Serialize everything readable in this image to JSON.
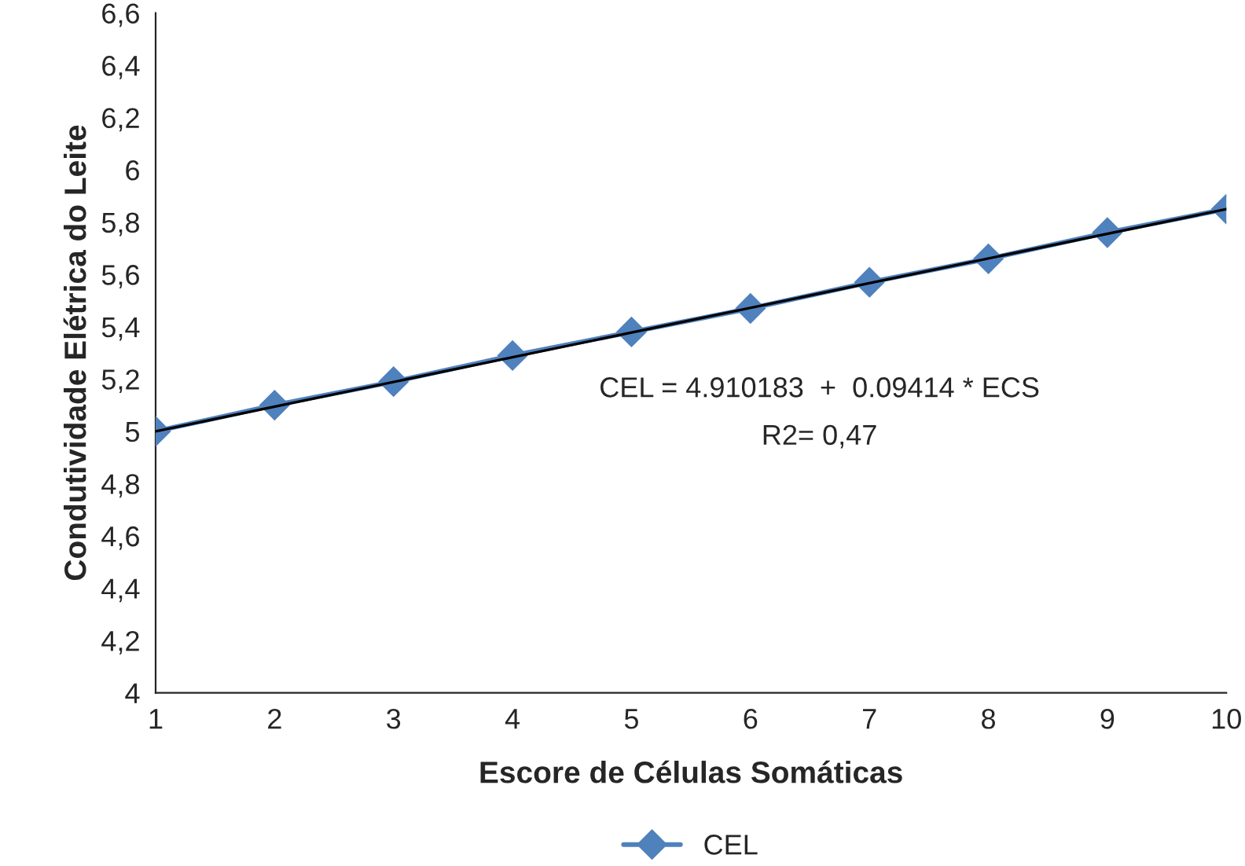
{
  "chart_data": {
    "type": "line",
    "xlabel": "Escore de Células Somáticas",
    "ylabel": "Condutividade Elétrica do Leite",
    "x": [
      1,
      2,
      3,
      4,
      5,
      6,
      7,
      8,
      9,
      10
    ],
    "series": [
      {
        "name": "CEL",
        "color": "#4f81bd",
        "values": [
          5.0,
          5.1,
          5.19,
          5.29,
          5.38,
          5.47,
          5.57,
          5.66,
          5.76,
          5.85
        ],
        "marker": "diamond"
      },
      {
        "type": "line",
        "color": "#000000",
        "x": [
          1,
          10
        ],
        "values": [
          5.0,
          5.85
        ],
        "marker": "none"
      }
    ],
    "xlim": [
      1,
      10
    ],
    "xticks": [
      1,
      2,
      3,
      4,
      5,
      6,
      7,
      8,
      9,
      10
    ],
    "ylim": [
      4,
      6.6
    ],
    "yticks": [
      {
        "value": 4,
        "label": "4"
      },
      {
        "value": 4.2,
        "label": "4,2"
      },
      {
        "value": 4.4,
        "label": "4,4"
      },
      {
        "value": 4.6,
        "label": "4,6"
      },
      {
        "value": 4.8,
        "label": "4,8"
      },
      {
        "value": 5,
        "label": "5"
      },
      {
        "value": 5.2,
        "label": "5,2"
      },
      {
        "value": 5.4,
        "label": "5,4"
      },
      {
        "value": 5.6,
        "label": "5,6"
      },
      {
        "value": 5.8,
        "label": "5,8"
      },
      {
        "value": 6,
        "label": "6"
      },
      {
        "value": 6.2,
        "label": "6,2"
      },
      {
        "value": 6.4,
        "label": "6,4"
      },
      {
        "value": 6.6,
        "label": "6,6"
      }
    ],
    "annotations": [
      "CEL = 4.910183  +  0.09414 * ECS",
      "R2= 0,47"
    ],
    "grid": false,
    "legend": "bottom"
  }
}
